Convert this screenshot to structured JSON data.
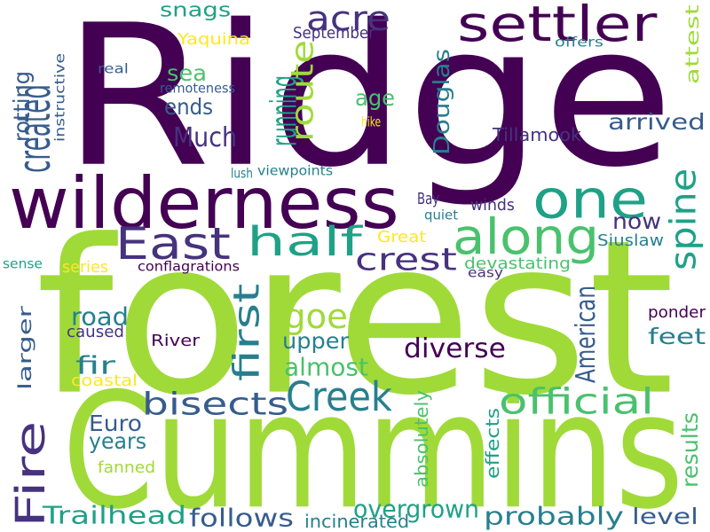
{
  "palette": {
    "dark_purple": "#440154",
    "indigo": "#46327e",
    "blue": "#365c8d",
    "steel": "#277f8e",
    "teal": "#1fa187",
    "green": "#4ac16d",
    "lime": "#a0da39",
    "yellow": "#fde725"
  },
  "words": [
    {
      "text": "Ridge",
      "color": "#440154",
      "weight": 100,
      "vertical": false
    },
    {
      "text": "forest",
      "color": "#a0da39",
      "weight": 98,
      "vertical": false
    },
    {
      "text": "Cummins",
      "color": "#a0da39",
      "weight": 90,
      "vertical": false
    },
    {
      "text": "wilderness",
      "color": "#440154",
      "weight": 45,
      "vertical": false
    },
    {
      "text": "one",
      "color": "#1fa187",
      "weight": 38,
      "vertical": false
    },
    {
      "text": "settler",
      "color": "#440154",
      "weight": 30,
      "vertical": false
    },
    {
      "text": "half",
      "color": "#1fa187",
      "weight": 32,
      "vertical": false
    },
    {
      "text": "along",
      "color": "#4ac16d",
      "weight": 32,
      "vertical": false
    },
    {
      "text": "East",
      "color": "#46327e",
      "weight": 30,
      "vertical": false
    },
    {
      "text": "Fire",
      "color": "#46327e",
      "weight": 36,
      "vertical": true
    },
    {
      "text": "created",
      "color": "#365c8d",
      "weight": 25,
      "vertical": true
    },
    {
      "text": "acre",
      "color": "#46327e",
      "weight": 20,
      "vertical": false
    },
    {
      "text": "running",
      "color": "#1fa187",
      "weight": 20,
      "vertical": true
    },
    {
      "text": "route",
      "color": "#a0da39",
      "weight": 20,
      "vertical": true
    },
    {
      "text": "crest",
      "color": "#46327e",
      "weight": 18,
      "vertical": false
    },
    {
      "text": "spine",
      "color": "#1fa187",
      "weight": 18,
      "vertical": true
    },
    {
      "text": "Creek",
      "color": "#277f8e",
      "weight": 22,
      "vertical": false
    },
    {
      "text": "official",
      "color": "#4ac16d",
      "weight": 22,
      "vertical": false
    },
    {
      "text": "bisects",
      "color": "#365c8d",
      "weight": 20,
      "vertical": false
    },
    {
      "text": "goes",
      "color": "#a0da39",
      "weight": 20,
      "vertical": false
    },
    {
      "text": "first",
      "color": "#277f8e",
      "weight": 20,
      "vertical": true
    },
    {
      "text": "snags",
      "color": "#1fa187",
      "weight": 12,
      "vertical": false
    },
    {
      "text": "Yaquina",
      "color": "#fde725",
      "weight": 8,
      "vertical": false
    },
    {
      "text": "September",
      "color": "#46327e",
      "weight": 8,
      "vertical": false
    },
    {
      "text": "attest",
      "color": "#a0da39",
      "weight": 12,
      "vertical": true
    },
    {
      "text": "offers",
      "color": "#277f8e",
      "weight": 7,
      "vertical": false
    },
    {
      "text": "real",
      "color": "#365c8d",
      "weight": 7,
      "vertical": false
    },
    {
      "text": "rotting",
      "color": "#365c8d",
      "weight": 12,
      "vertical": true
    },
    {
      "text": "instructive",
      "color": "#365c8d",
      "weight": 8,
      "vertical": true
    },
    {
      "text": "remoteness",
      "color": "#365c8d",
      "weight": 7,
      "vertical": false
    },
    {
      "text": "sea",
      "color": "#4ac16d",
      "weight": 12,
      "vertical": false
    },
    {
      "text": "age",
      "color": "#4ac16d",
      "weight": 12,
      "vertical": false
    },
    {
      "text": "ends",
      "color": "#365c8d",
      "weight": 12,
      "vertical": false
    },
    {
      "text": "Douglas",
      "color": "#277f8e",
      "weight": 12,
      "vertical": true
    },
    {
      "text": "arrived",
      "color": "#365c8d",
      "weight": 14,
      "vertical": false
    },
    {
      "text": "hike",
      "color": "#fde725",
      "weight": 7,
      "vertical": false
    },
    {
      "text": "Much",
      "color": "#46327e",
      "weight": 14,
      "vertical": false
    },
    {
      "text": "Tillamook",
      "color": "#46327e",
      "weight": 10,
      "vertical": false
    },
    {
      "text": "lush",
      "color": "#277f8e",
      "weight": 7,
      "vertical": false
    },
    {
      "text": "viewpoints",
      "color": "#277f8e",
      "weight": 7,
      "vertical": false
    },
    {
      "text": "Bay",
      "color": "#46327e",
      "weight": 9,
      "vertical": false
    },
    {
      "text": "winds",
      "color": "#46327e",
      "weight": 9,
      "vertical": false
    },
    {
      "text": "quiet",
      "color": "#277f8e",
      "weight": 7,
      "vertical": false
    },
    {
      "text": "now",
      "color": "#46327e",
      "weight": 12,
      "vertical": false
    },
    {
      "text": "Great",
      "color": "#fde725",
      "weight": 8,
      "vertical": false
    },
    {
      "text": "Siuslaw",
      "color": "#277f8e",
      "weight": 9,
      "vertical": false
    },
    {
      "text": "sense",
      "color": "#1fa187",
      "weight": 7,
      "vertical": false
    },
    {
      "text": "series",
      "color": "#fde725",
      "weight": 8,
      "vertical": false
    },
    {
      "text": "conflagrations",
      "color": "#440154",
      "weight": 7,
      "vertical": false
    },
    {
      "text": "devastating",
      "color": "#4ac16d",
      "weight": 9,
      "vertical": false
    },
    {
      "text": "easy",
      "color": "#46327e",
      "weight": 7,
      "vertical": false
    },
    {
      "text": "larger",
      "color": "#365c8d",
      "weight": 12,
      "vertical": true
    },
    {
      "text": "road",
      "color": "#277f8e",
      "weight": 14,
      "vertical": false
    },
    {
      "text": "caused",
      "color": "#46327e",
      "weight": 9,
      "vertical": false
    },
    {
      "text": "upper",
      "color": "#277f8e",
      "weight": 12,
      "vertical": false
    },
    {
      "text": "American",
      "color": "#365c8d",
      "weight": 12,
      "vertical": true
    },
    {
      "text": "ponder",
      "color": "#440154",
      "weight": 9,
      "vertical": false
    },
    {
      "text": "River",
      "color": "#440154",
      "weight": 9,
      "vertical": false
    },
    {
      "text": "diverse",
      "color": "#440154",
      "weight": 14,
      "vertical": false
    },
    {
      "text": "feet",
      "color": "#277f8e",
      "weight": 12,
      "vertical": false
    },
    {
      "text": "fir",
      "color": "#277f8e",
      "weight": 14,
      "vertical": false
    },
    {
      "text": "almost",
      "color": "#4ac16d",
      "weight": 14,
      "vertical": false
    },
    {
      "text": "coastal",
      "color": "#fde725",
      "weight": 8,
      "vertical": false
    },
    {
      "text": "absolutely",
      "color": "#4ac16d",
      "weight": 7,
      "vertical": true
    },
    {
      "text": "effects",
      "color": "#1fa187",
      "weight": 7,
      "vertical": true
    },
    {
      "text": "results",
      "color": "#4ac16d",
      "weight": 12,
      "vertical": true
    },
    {
      "text": "Euro",
      "color": "#365c8d",
      "weight": 12,
      "vertical": false
    },
    {
      "text": "years",
      "color": "#277f8e",
      "weight": 12,
      "vertical": false
    },
    {
      "text": "fanned",
      "color": "#a0da39",
      "weight": 8,
      "vertical": false
    },
    {
      "text": "overgrown",
      "color": "#1fa187",
      "weight": 14,
      "vertical": false
    },
    {
      "text": "probably",
      "color": "#277f8e",
      "weight": 14,
      "vertical": false
    },
    {
      "text": "Trailhead",
      "color": "#1fa187",
      "weight": 14,
      "vertical": false
    },
    {
      "text": "follows",
      "color": "#365c8d",
      "weight": 14,
      "vertical": false
    },
    {
      "text": "level",
      "color": "#365c8d",
      "weight": 12,
      "vertical": false
    },
    {
      "text": "incinerated",
      "color": "#277f8e",
      "weight": 9,
      "vertical": false
    }
  ]
}
